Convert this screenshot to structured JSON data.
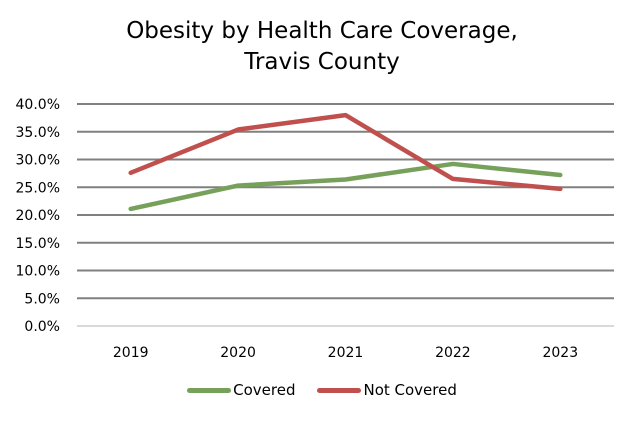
{
  "chart_data": {
    "type": "line",
    "title_line1": "Obesity by Health Care Coverage,",
    "title_line2": "Travis County",
    "xlabel": "",
    "ylabel": "",
    "categories": [
      "2019",
      "2020",
      "2021",
      "2022",
      "2023"
    ],
    "y_ticks": [
      "0.0%",
      "5.0%",
      "10.0%",
      "15.0%",
      "20.0%",
      "25.0%",
      "30.0%",
      "35.0%",
      "40.0%"
    ],
    "ylim": [
      0,
      40
    ],
    "grid": true,
    "legend_position": "bottom",
    "series": [
      {
        "name": "Covered",
        "color": "#77A05B",
        "values": [
          21.1,
          25.3,
          26.4,
          29.2,
          27.2
        ]
      },
      {
        "name": "Not Covered",
        "color": "#C0504D",
        "values": [
          27.6,
          35.4,
          38.0,
          26.5,
          24.7
        ]
      }
    ]
  }
}
